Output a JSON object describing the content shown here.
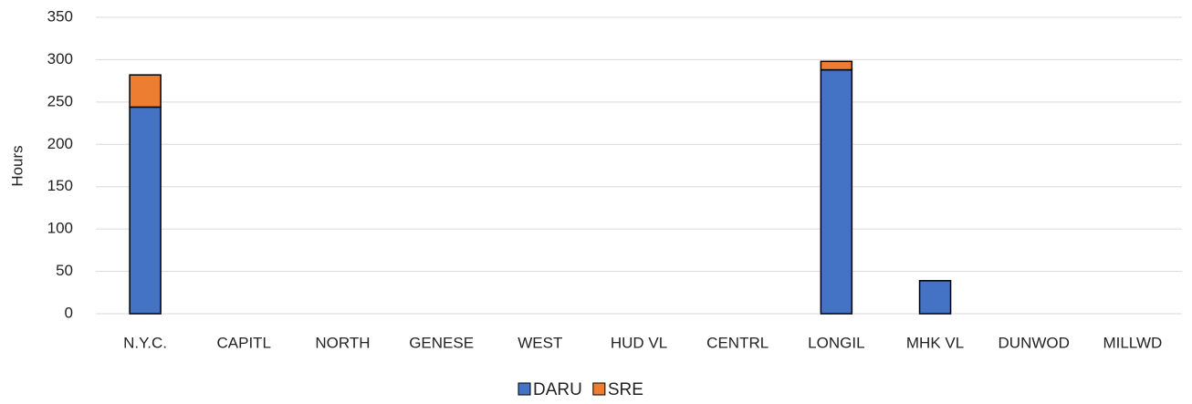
{
  "chart_data": {
    "type": "stacked_bar",
    "y_label": "Hours",
    "categories": [
      "N.Y.C.",
      "CAPITL",
      "NORTH",
      "GENESE",
      "WEST",
      "HUD VL",
      "CENTRL",
      "LONGIL",
      "MHK VL",
      "DUNWOD",
      "MILLWD"
    ],
    "series": [
      {
        "name": "DARU",
        "color": "#4472c4",
        "values": [
          244,
          0,
          0,
          0,
          0,
          0,
          0,
          288,
          39,
          0,
          0
        ]
      },
      {
        "name": "SRE",
        "color": "#ed7d31",
        "values": [
          38,
          0,
          0,
          0,
          0,
          0,
          0,
          10,
          0,
          0,
          0
        ]
      }
    ],
    "ylim": [
      0,
      350
    ],
    "yticks": [
      0,
      50,
      100,
      150,
      200,
      250,
      300,
      350
    ],
    "grid": true,
    "legend": "bottom"
  }
}
